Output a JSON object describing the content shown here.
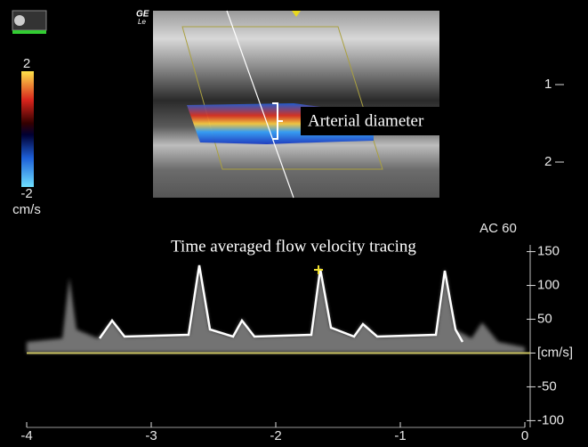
{
  "image": {
    "logo_top": "GE",
    "logo_bottom": "Le",
    "annotation": "Arterial diameter"
  },
  "color_scale": {
    "ticks": [
      2,
      -2
    ],
    "unit": "cm/s"
  },
  "depth_scale": {
    "ticks": [
      1,
      2
    ]
  },
  "doppler": {
    "title": "Time averaged flow velocity tracing",
    "gain_label": "AC 60",
    "ylim": [
      -110,
      160
    ],
    "yticks": [
      150,
      100,
      50,
      {
        "value": 0,
        "label": "[cm/s]"
      },
      -50,
      -100
    ],
    "xlim": [
      -4,
      0
    ],
    "xticks": [
      -4,
      -3,
      -2,
      -1,
      0
    ]
  }
}
